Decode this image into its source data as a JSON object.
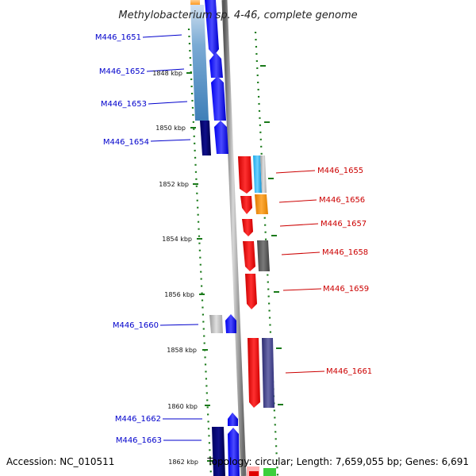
{
  "title": "Methylobacterium sp. 4-46, complete genome",
  "accession": "Accession: NC_010511",
  "topology": "Topology: circular; Length: 7,659,055 bp; Genes: 6,691",
  "scale_labels": [
    "1848 kbp",
    "1850 kbp",
    "1852 kbp",
    "1854 kbp",
    "1856 kbp",
    "1858 kbp",
    "1860 kbp",
    "1862 kbp"
  ],
  "colors": {
    "left_label": "#0000cc",
    "right_label": "#cc0000",
    "tick": "#1a7a1a",
    "backbone": "#808080"
  },
  "left_genes": [
    {
      "name": "M446_1651"
    },
    {
      "name": "M446_1652"
    },
    {
      "name": "M446_1653"
    },
    {
      "name": "M446_1654"
    },
    {
      "name": "M446_1660"
    },
    {
      "name": "M446_1662"
    },
    {
      "name": "M446_1663"
    }
  ],
  "right_genes": [
    {
      "name": "M446_1655"
    },
    {
      "name": "M446_1656"
    },
    {
      "name": "M446_1657"
    },
    {
      "name": "M446_1658"
    },
    {
      "name": "M446_1659"
    },
    {
      "name": "M446_1661"
    }
  ]
}
